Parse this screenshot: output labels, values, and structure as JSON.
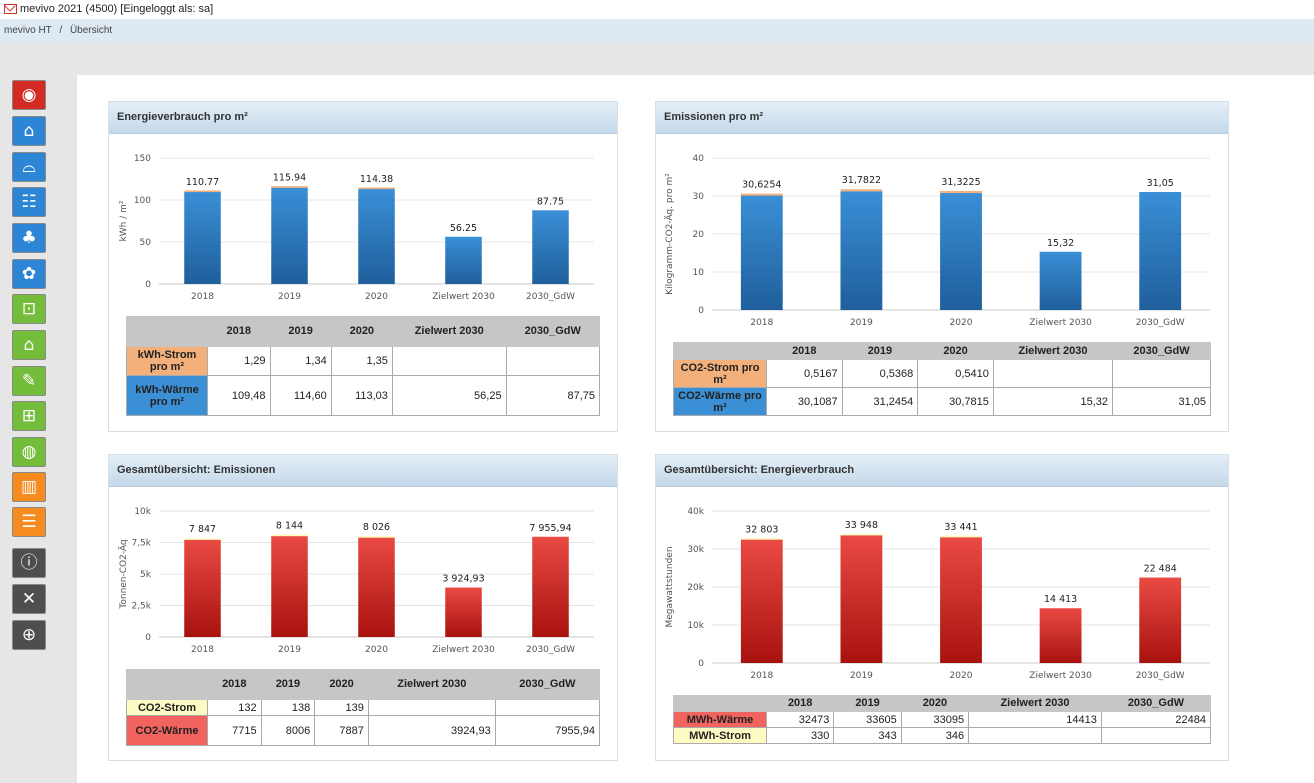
{
  "window": {
    "title": "mevivo 2021 (4500)  [Eingeloggt als: sa]"
  },
  "breadcrumb": [
    "mevivo HT",
    "Übersicht"
  ],
  "sidebar": {
    "items": [
      {
        "name": "dashboard-icon",
        "glyph": "◉",
        "color": "red"
      },
      {
        "name": "building-icon",
        "glyph": "⌂",
        "color": "blue"
      },
      {
        "name": "sofa-icon",
        "glyph": "⌓",
        "color": "blue"
      },
      {
        "name": "fence-icon",
        "glyph": "☷",
        "color": "blue"
      },
      {
        "name": "tree-house-icon",
        "glyph": "♣",
        "color": "blue"
      },
      {
        "name": "eco-icon",
        "glyph": "✿",
        "color": "blue"
      },
      {
        "name": "floorplan-icon",
        "glyph": "⊡",
        "color": "green"
      },
      {
        "name": "house-hand-icon",
        "glyph": "⌂",
        "color": "green"
      },
      {
        "name": "checklist-icon",
        "glyph": "✎",
        "color": "green"
      },
      {
        "name": "crane-icon",
        "glyph": "⊞",
        "color": "green"
      },
      {
        "name": "globe-icon",
        "glyph": "◍",
        "color": "green"
      },
      {
        "name": "cabinets-icon",
        "glyph": "▥",
        "color": "orange"
      },
      {
        "name": "list-icon",
        "glyph": "☰",
        "color": "orange"
      },
      {
        "name": "info-icon",
        "glyph": "ⓘ",
        "color": "dark"
      },
      {
        "name": "tools-icon",
        "glyph": "✕",
        "color": "dark"
      },
      {
        "name": "first-aid-icon",
        "glyph": "⊕",
        "color": "dark"
      }
    ]
  },
  "panels": {
    "energie_m2": {
      "title": "Energieverbrauch pro m²",
      "table": {
        "headers": [
          "2018",
          "2019",
          "2020",
          "Zielwert 2030",
          "2030_GdW"
        ],
        "rows": [
          {
            "label": "kWh-Strom pro m²",
            "values": [
              "1,29",
              "1,34",
              "1,35",
              "",
              ""
            ]
          },
          {
            "label": "kWh-Wärme pro m²",
            "values": [
              "109,48",
              "114,60",
              "113,03",
              "56,25",
              "87,75"
            ]
          }
        ]
      }
    },
    "emission_m2": {
      "title": "Emissionen pro m²",
      "table": {
        "headers": [
          "2018",
          "2019",
          "2020",
          "Zielwert 2030",
          "2030_GdW"
        ],
        "rows": [
          {
            "label": "CO2-Strom pro m²",
            "values": [
              "0,5167",
              "0,5368",
              "0,5410",
              "",
              ""
            ]
          },
          {
            "label": "CO2-Wärme pro m²",
            "values": [
              "30,1087",
              "31,2454",
              "30,7815",
              "15,32",
              "31,05"
            ]
          }
        ]
      }
    },
    "emission_total": {
      "title": "Gesamtübersicht: Emissionen",
      "table": {
        "headers": [
          "2018",
          "2019",
          "2020",
          "Zielwert 2030",
          "2030_GdW"
        ],
        "rows": [
          {
            "label": "CO2-Strom",
            "values": [
              "132",
              "138",
              "139",
              "",
              ""
            ]
          },
          {
            "label": "CO2-Wärme",
            "values": [
              "7715",
              "8006",
              "7887",
              "3924,93",
              "7955,94"
            ]
          }
        ]
      }
    },
    "energie_total": {
      "title": "Gesamtübersicht: Energieverbrauch",
      "table": {
        "headers": [
          "2018",
          "2019",
          "2020",
          "Zielwert 2030",
          "2030_GdW"
        ],
        "rows": [
          {
            "label": "MWh-Wärme",
            "values": [
              "32473",
              "33605",
              "33095",
              "14413",
              "22484"
            ]
          },
          {
            "label": "MWh-Strom",
            "values": [
              "330",
              "343",
              "346",
              "",
              ""
            ]
          }
        ]
      }
    }
  },
  "chart_data": [
    {
      "id": "energie_m2",
      "type": "bar",
      "stacked": true,
      "categories": [
        "2018",
        "2019",
        "2020",
        "Zielwert 2030",
        "2030_GdW"
      ],
      "series": [
        {
          "name": "kWh-Wärme pro m²",
          "values": [
            109.48,
            114.6,
            113.03,
            56.25,
            87.75
          ],
          "color": "#2f7fc4"
        },
        {
          "name": "kWh-Strom pro m²",
          "values": [
            1.29,
            1.34,
            1.35,
            0,
            0
          ],
          "color": "#f4b07a"
        }
      ],
      "data_labels": [
        "110.77",
        "115.94",
        "114.38",
        "56.25",
        "87.75"
      ],
      "ylabel": "kWh / m²",
      "ylim": [
        0,
        150
      ],
      "yticks": [
        0,
        50,
        100,
        150
      ],
      "ytick_labels": [
        "0",
        "50",
        "100",
        "150"
      ],
      "grid": true
    },
    {
      "id": "emission_m2",
      "type": "bar",
      "stacked": true,
      "categories": [
        "2018",
        "2019",
        "2020",
        "Zielwert 2030",
        "2030_GdW"
      ],
      "series": [
        {
          "name": "CO2-Wärme pro m²",
          "values": [
            30.1087,
            31.2454,
            30.7815,
            15.32,
            31.05
          ],
          "color": "#2f7fc4"
        },
        {
          "name": "CO2-Strom pro m²",
          "values": [
            0.5167,
            0.5368,
            0.541,
            0,
            0
          ],
          "color": "#f4b07a"
        }
      ],
      "data_labels": [
        "30,6254",
        "31,7822",
        "31,3225",
        "15,32",
        "31,05"
      ],
      "ylabel": "Kilogramm-CO2-Äq. pro m²",
      "ylim": [
        0,
        40
      ],
      "yticks": [
        0,
        10,
        20,
        30,
        40
      ],
      "ytick_labels": [
        "0",
        "10",
        "20",
        "30",
        "40"
      ],
      "grid": true
    },
    {
      "id": "emission_total",
      "type": "bar",
      "stacked": true,
      "categories": [
        "2018",
        "2019",
        "2020",
        "Zielwert 2030",
        "2030_GdW"
      ],
      "series": [
        {
          "name": "CO2-Wärme",
          "values": [
            7715,
            8006,
            7887,
            3924.93,
            7955.94
          ],
          "color": "#d4302a"
        },
        {
          "name": "CO2-Strom",
          "values": [
            132,
            138,
            139,
            0,
            0
          ],
          "color": "#fdfbc4"
        }
      ],
      "data_labels": [
        "7 847",
        "8 144",
        "8 026",
        "3 924,93",
        "7 955,94"
      ],
      "ylabel": "Tonnen-CO2-Äq",
      "ylim": [
        0,
        10000
      ],
      "yticks": [
        0,
        2500,
        5000,
        7500,
        10000
      ],
      "ytick_labels": [
        "0",
        "2,5k",
        "5k",
        "7,5k",
        "10k"
      ],
      "grid": true
    },
    {
      "id": "energie_total",
      "type": "bar",
      "stacked": true,
      "categories": [
        "2018",
        "2019",
        "2020",
        "Zielwert 2030",
        "2030_GdW"
      ],
      "series": [
        {
          "name": "MWh-Wärme",
          "values": [
            32473,
            33605,
            33095,
            14413,
            22484
          ],
          "color": "#d4302a"
        },
        {
          "name": "MWh-Strom",
          "values": [
            330,
            343,
            346,
            0,
            0
          ],
          "color": "#fdfbc4"
        }
      ],
      "data_labels": [
        "32 803",
        "33 948",
        "33 441",
        "14 413",
        "22 484"
      ],
      "ylabel": "Megawattstunden",
      "ylim": [
        0,
        40000
      ],
      "yticks": [
        0,
        10000,
        20000,
        30000,
        40000
      ],
      "ytick_labels": [
        "0",
        "10k",
        "20k",
        "30k",
        "40k"
      ],
      "grid": true
    }
  ]
}
